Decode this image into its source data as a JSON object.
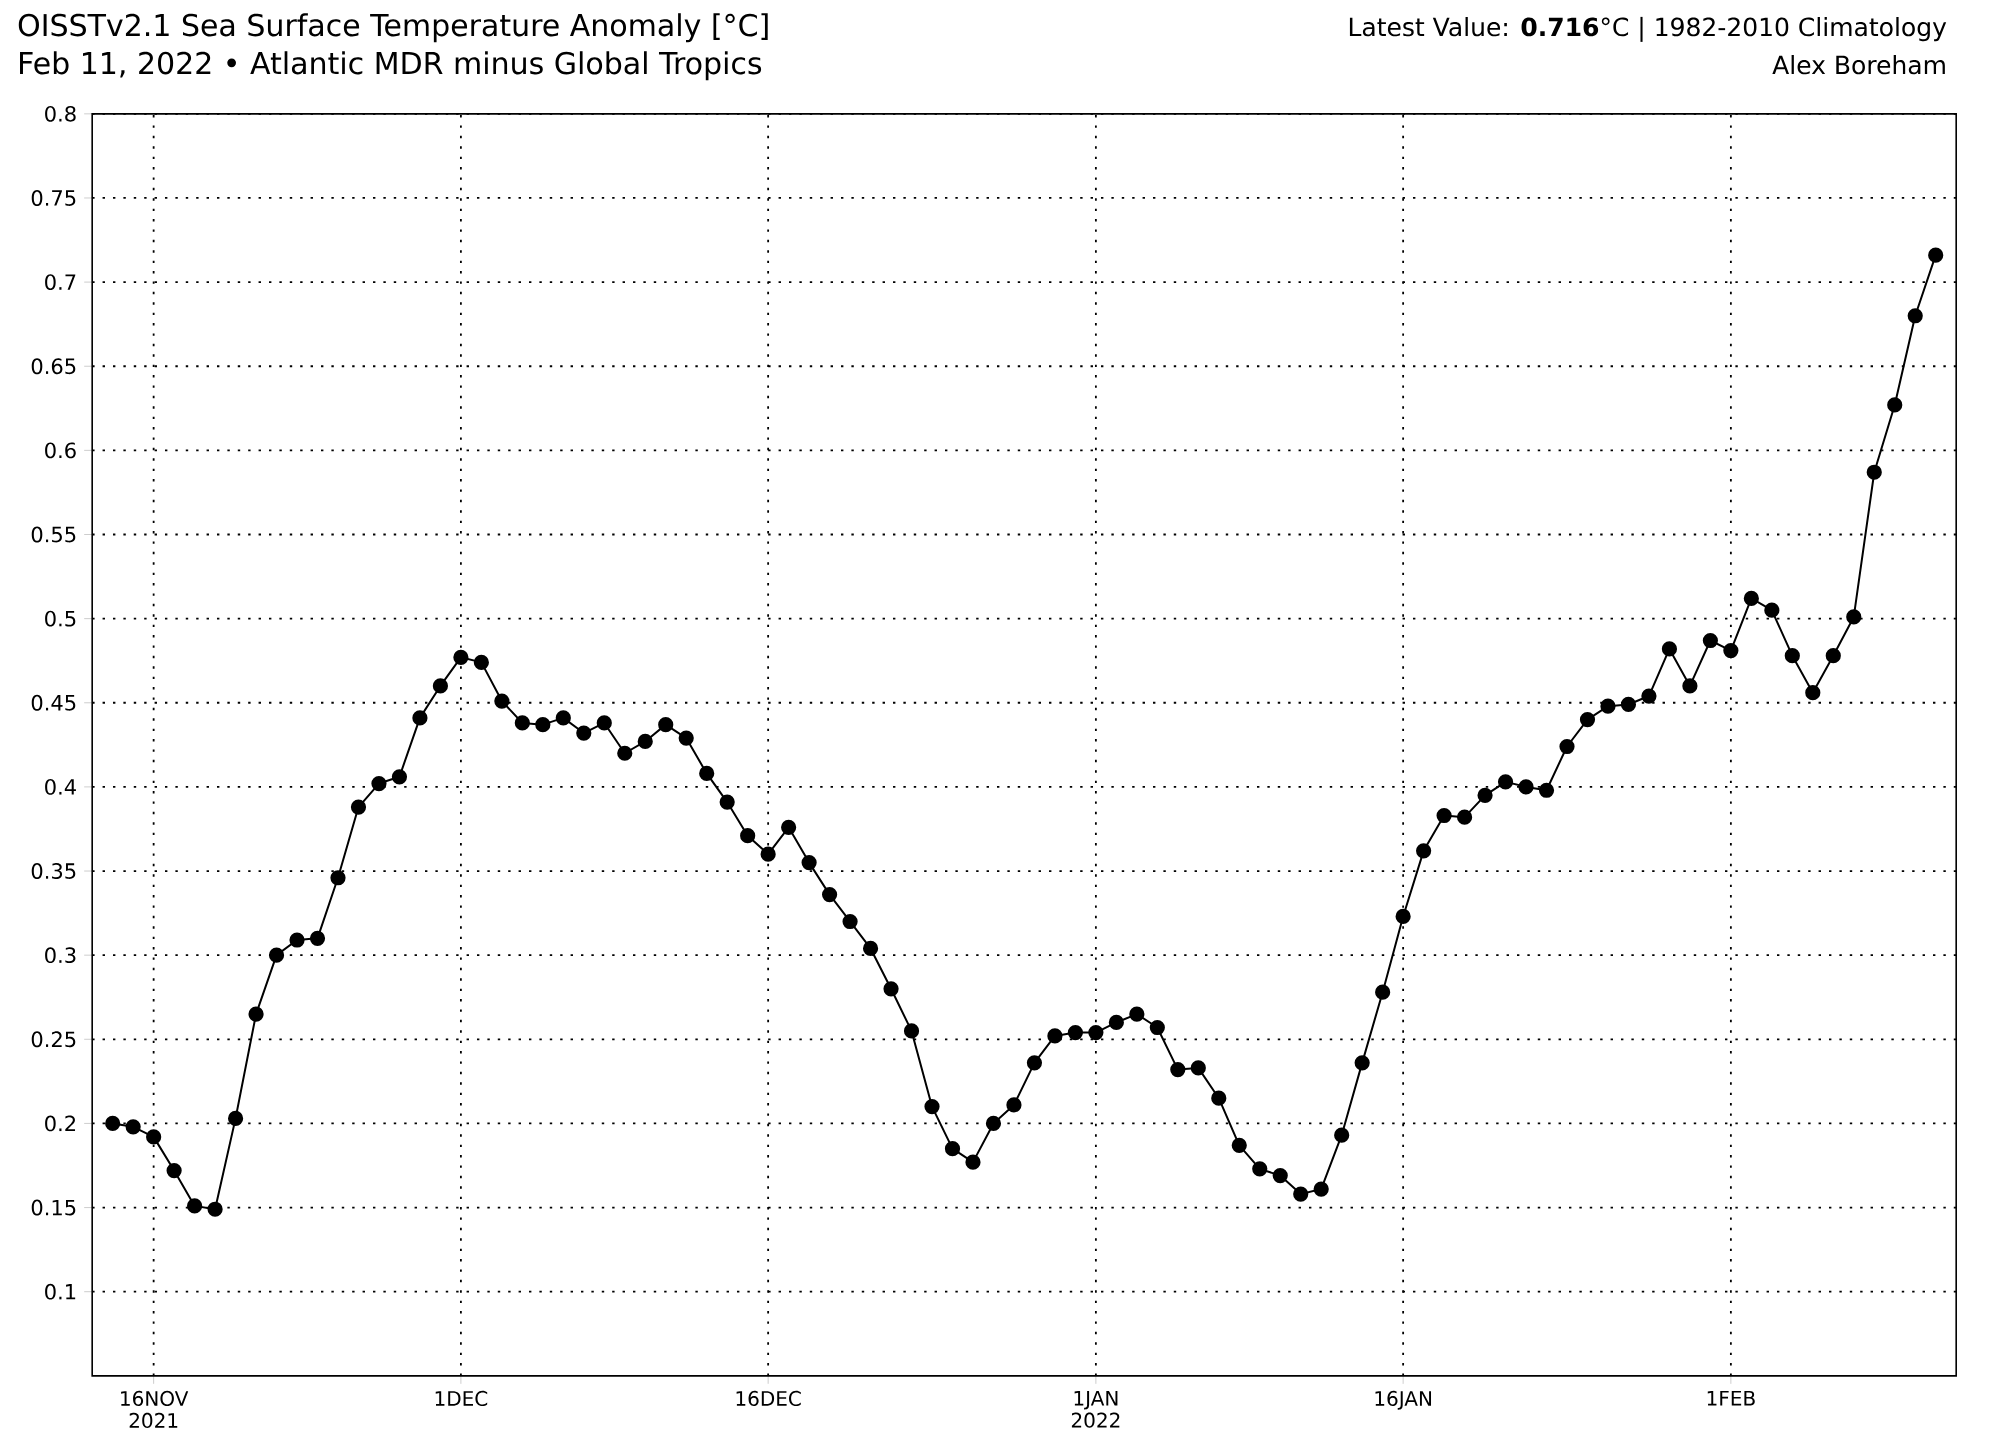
{
  "chart_data": {
    "type": "line",
    "title": "OISSTv2.1 Sea Surface Temperature Anomaly [°C]",
    "subtitle": "Feb 11, 2022 • Atlantic MDR minus Global Tropics",
    "annotations": [
      "Latest Value: **0.716**°C | 1982-2010 Climatology",
      "Alex Boreham"
    ],
    "x": [
      "2021-11-14",
      "2021-11-15",
      "2021-11-16",
      "2021-11-17",
      "2021-11-18",
      "2021-11-19",
      "2021-11-20",
      "2021-11-21",
      "2021-11-22",
      "2021-11-23",
      "2021-11-24",
      "2021-11-25",
      "2021-11-26",
      "2021-11-27",
      "2021-11-28",
      "2021-11-29",
      "2021-11-30",
      "2021-12-01",
      "2021-12-02",
      "2021-12-03",
      "2021-12-04",
      "2021-12-05",
      "2021-12-06",
      "2021-12-07",
      "2021-12-08",
      "2021-12-09",
      "2021-12-10",
      "2021-12-11",
      "2021-12-12",
      "2021-12-13",
      "2021-12-14",
      "2021-12-15",
      "2021-12-16",
      "2021-12-17",
      "2021-12-18",
      "2021-12-19",
      "2021-12-20",
      "2021-12-21",
      "2021-12-22",
      "2021-12-23",
      "2021-12-24",
      "2021-12-25",
      "2021-12-26",
      "2021-12-27",
      "2021-12-28",
      "2021-12-29",
      "2021-12-30",
      "2021-12-31",
      "2022-01-01",
      "2022-01-02",
      "2022-01-03",
      "2022-01-04",
      "2022-01-05",
      "2022-01-06",
      "2022-01-07",
      "2022-01-08",
      "2022-01-09",
      "2022-01-10",
      "2022-01-11",
      "2022-01-12",
      "2022-01-13",
      "2022-01-14",
      "2022-01-15",
      "2022-01-16",
      "2022-01-17",
      "2022-01-18",
      "2022-01-19",
      "2022-01-20",
      "2022-01-21",
      "2022-01-22",
      "2022-01-23",
      "2022-01-24",
      "2022-01-25",
      "2022-01-26",
      "2022-01-27",
      "2022-01-28",
      "2022-01-29",
      "2022-01-30",
      "2022-01-31",
      "2022-02-01",
      "2022-02-02",
      "2022-02-03",
      "2022-02-04",
      "2022-02-05",
      "2022-02-06",
      "2022-02-07",
      "2022-02-08",
      "2022-02-09",
      "2022-02-10",
      "2022-02-11"
    ],
    "series": [
      {
        "color": "#000000",
        "values": [
          0.2,
          0.198,
          0.192,
          0.172,
          0.151,
          0.149,
          0.203,
          0.265,
          0.3,
          0.309,
          0.31,
          0.346,
          0.388,
          0.402,
          0.406,
          0.441,
          0.46,
          0.477,
          0.474,
          0.451,
          0.438,
          0.437,
          0.441,
          0.432,
          0.438,
          0.42,
          0.427,
          0.437,
          0.429,
          0.408,
          0.391,
          0.371,
          0.36,
          0.376,
          0.355,
          0.336,
          0.32,
          0.304,
          0.28,
          0.255,
          0.21,
          0.185,
          0.177,
          0.2,
          0.211,
          0.236,
          0.252,
          0.254,
          0.254,
          0.26,
          0.265,
          0.257,
          0.232,
          0.233,
          0.215,
          0.187,
          0.173,
          0.169,
          0.158,
          0.161,
          0.193,
          0.236,
          0.278,
          0.323,
          0.362,
          0.383,
          0.382,
          0.395,
          0.403,
          0.4,
          0.398,
          0.424,
          0.44,
          0.448,
          0.449,
          0.454,
          0.482,
          0.46,
          0.487,
          0.481,
          0.512,
          0.505,
          0.478,
          0.456,
          0.478,
          0.501,
          0.587,
          0.627,
          0.68,
          0.716
        ]
      }
    ],
    "xlim": [
      "2021-11-13",
      "2022-02-12"
    ],
    "xticks": [
      {
        "value": "2021-11-16",
        "label": "16NOV 2021"
      },
      {
        "value": "2021-12-01",
        "label": "1DEC"
      },
      {
        "value": "2021-12-16",
        "label": "16DEC"
      },
      {
        "value": "2022-01-01",
        "label": "1JAN 2022"
      },
      {
        "value": "2022-01-16",
        "label": "16JAN"
      },
      {
        "value": "2022-02-01",
        "label": "1FEB"
      }
    ],
    "ylim": [
      0.05,
      0.8
    ],
    "yticks": [
      0.1,
      0.15,
      0.2,
      0.25,
      0.3,
      0.35,
      0.4,
      0.45,
      0.5,
      0.55,
      0.6,
      0.65,
      0.7,
      0.75,
      0.8
    ],
    "grid": true,
    "marker": "circle",
    "line_style": "solid"
  }
}
